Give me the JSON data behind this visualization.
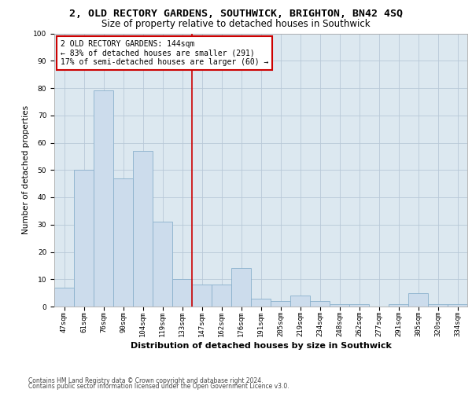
{
  "title1": "2, OLD RECTORY GARDENS, SOUTHWICK, BRIGHTON, BN42 4SQ",
  "title2": "Size of property relative to detached houses in Southwick",
  "xlabel": "Distribution of detached houses by size in Southwick",
  "ylabel": "Number of detached properties",
  "categories": [
    "47sqm",
    "61sqm",
    "76sqm",
    "90sqm",
    "104sqm",
    "119sqm",
    "133sqm",
    "147sqm",
    "162sqm",
    "176sqm",
    "191sqm",
    "205sqm",
    "219sqm",
    "234sqm",
    "248sqm",
    "262sqm",
    "277sqm",
    "291sqm",
    "305sqm",
    "320sqm",
    "334sqm"
  ],
  "values": [
    7,
    50,
    79,
    47,
    57,
    31,
    10,
    8,
    8,
    14,
    3,
    2,
    4,
    2,
    1,
    1,
    0,
    1,
    5,
    1,
    1
  ],
  "bar_color": "#ccdcec",
  "bar_edge_color": "#8ab0cc",
  "vline_x_index": 7,
  "vline_color": "#cc0000",
  "annotation_text": "2 OLD RECTORY GARDENS: 144sqm\n← 83% of detached houses are smaller (291)\n17% of semi-detached houses are larger (60) →",
  "annotation_box_color": "#ffffff",
  "annotation_box_edge_color": "#cc0000",
  "ylim": [
    0,
    100
  ],
  "yticks": [
    0,
    10,
    20,
    30,
    40,
    50,
    60,
    70,
    80,
    90,
    100
  ],
  "grid_color": "#b8c8d8",
  "background_color": "#dce8f0",
  "footer1": "Contains HM Land Registry data © Crown copyright and database right 2024.",
  "footer2": "Contains public sector information licensed under the Open Government Licence v3.0.",
  "title1_fontsize": 9.5,
  "title2_fontsize": 8.5,
  "xlabel_fontsize": 8,
  "ylabel_fontsize": 7.5,
  "tick_fontsize": 6.5,
  "annotation_fontsize": 7,
  "footer_fontsize": 5.5
}
